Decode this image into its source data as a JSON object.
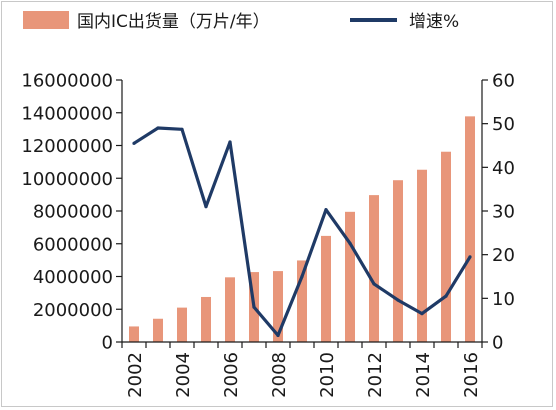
{
  "chart_data": {
    "type": "bar",
    "categories": [
      "2002",
      "2003",
      "2004",
      "2005",
      "2006",
      "2007",
      "2008",
      "2009",
      "2010",
      "2011",
      "2012",
      "2013",
      "2014",
      "2015",
      "2016"
    ],
    "series": [
      {
        "name": "国内IC出货量（万片/年）",
        "type": "bar",
        "axis": "left",
        "color": "#E8967A",
        "values": [
          950000,
          1420000,
          2100000,
          2750000,
          3950000,
          4270000,
          4330000,
          4980000,
          6480000,
          7950000,
          8970000,
          9880000,
          10520000,
          11620000,
          13780000
        ]
      },
      {
        "name": "增速%",
        "type": "line",
        "axis": "right",
        "color": "#1F3A66",
        "values": [
          45.5,
          49,
          48.7,
          31,
          45.8,
          8,
          1.5,
          15,
          30.3,
          22.6,
          13.3,
          9.6,
          6.5,
          10.5,
          19.5
        ]
      }
    ],
    "y_left": {
      "min": 0,
      "max": 16000000,
      "ticks": [
        "0",
        "2000000",
        "4000000",
        "6000000",
        "8000000",
        "10000000",
        "12000000",
        "14000000",
        "16000000"
      ]
    },
    "y_right": {
      "min": 0,
      "max": 60,
      "ticks": [
        "0",
        "10",
        "20",
        "30",
        "40",
        "50",
        "60"
      ]
    },
    "x_tick_labels": [
      "2002",
      "2004",
      "2006",
      "2008",
      "2010",
      "2012",
      "2014",
      "2016"
    ],
    "x_tick_years": [
      "2002",
      "2004",
      "2006",
      "2008",
      "2010",
      "2012",
      "2014",
      "2016"
    ],
    "legend_position": "top",
    "grid": false
  }
}
